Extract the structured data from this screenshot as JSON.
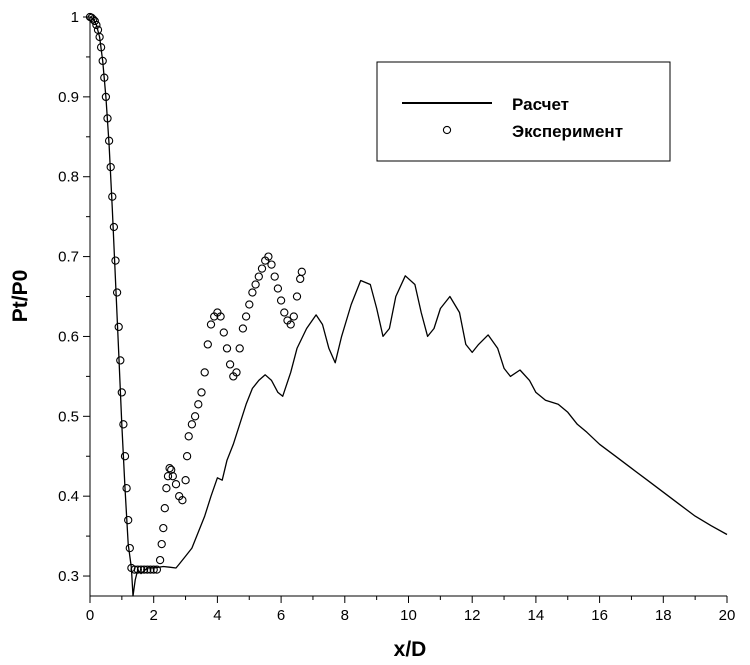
{
  "chart_data": {
    "type": "scatter",
    "title": "",
    "xlabel": "x/D",
    "ylabel": "Pt/P0",
    "xlim": [
      0,
      20
    ],
    "ylim": [
      0.275,
      1.0
    ],
    "x_ticks": [
      0,
      2,
      4,
      6,
      8,
      10,
      12,
      14,
      16,
      18,
      20
    ],
    "y_ticks": [
      0.3,
      0.4,
      0.5,
      0.6,
      0.7,
      0.8,
      0.9,
      1
    ],
    "grid": false,
    "legend": {
      "placement": "top-right",
      "entries": [
        {
          "label": "Расчет",
          "style": "line"
        },
        {
          "label": "Эксперимент",
          "style": "open-circle"
        }
      ]
    },
    "series": [
      {
        "name": "Расчет",
        "kind": "line",
        "color": "#000000",
        "points": [
          [
            0.0,
            1.0
          ],
          [
            0.1,
            0.998
          ],
          [
            0.2,
            0.99
          ],
          [
            0.3,
            0.975
          ],
          [
            0.4,
            0.945
          ],
          [
            0.5,
            0.9
          ],
          [
            0.6,
            0.84
          ],
          [
            0.7,
            0.76
          ],
          [
            0.8,
            0.67
          ],
          [
            0.9,
            0.58
          ],
          [
            1.0,
            0.49
          ],
          [
            1.1,
            0.41
          ],
          [
            1.2,
            0.34
          ],
          [
            1.3,
            0.31
          ],
          [
            1.35,
            0.275
          ],
          [
            1.42,
            0.295
          ],
          [
            1.5,
            0.308
          ],
          [
            1.6,
            0.303
          ],
          [
            1.8,
            0.31
          ],
          [
            2.0,
            0.31
          ],
          [
            2.3,
            0.312
          ],
          [
            2.5,
            0.311
          ],
          [
            2.7,
            0.31
          ],
          [
            2.8,
            0.315
          ],
          [
            3.0,
            0.325
          ],
          [
            3.2,
            0.335
          ],
          [
            3.4,
            0.355
          ],
          [
            3.6,
            0.375
          ],
          [
            3.8,
            0.4
          ],
          [
            4.0,
            0.423
          ],
          [
            4.15,
            0.42
          ],
          [
            4.3,
            0.445
          ],
          [
            4.5,
            0.465
          ],
          [
            4.7,
            0.49
          ],
          [
            4.9,
            0.515
          ],
          [
            5.1,
            0.535
          ],
          [
            5.3,
            0.545
          ],
          [
            5.5,
            0.552
          ],
          [
            5.7,
            0.545
          ],
          [
            5.9,
            0.53
          ],
          [
            6.05,
            0.525
          ],
          [
            6.3,
            0.555
          ],
          [
            6.5,
            0.585
          ],
          [
            6.8,
            0.61
          ],
          [
            7.1,
            0.627
          ],
          [
            7.3,
            0.615
          ],
          [
            7.5,
            0.585
          ],
          [
            7.7,
            0.567
          ],
          [
            7.9,
            0.6
          ],
          [
            8.2,
            0.64
          ],
          [
            8.5,
            0.67
          ],
          [
            8.8,
            0.665
          ],
          [
            9.0,
            0.635
          ],
          [
            9.2,
            0.6
          ],
          [
            9.4,
            0.61
          ],
          [
            9.6,
            0.65
          ],
          [
            9.9,
            0.676
          ],
          [
            10.2,
            0.665
          ],
          [
            10.4,
            0.63
          ],
          [
            10.6,
            0.6
          ],
          [
            10.8,
            0.61
          ],
          [
            11.0,
            0.635
          ],
          [
            11.3,
            0.65
          ],
          [
            11.6,
            0.63
          ],
          [
            11.8,
            0.59
          ],
          [
            12.0,
            0.58
          ],
          [
            12.2,
            0.59
          ],
          [
            12.5,
            0.602
          ],
          [
            12.8,
            0.585
          ],
          [
            13.0,
            0.56
          ],
          [
            13.2,
            0.55
          ],
          [
            13.5,
            0.558
          ],
          [
            13.8,
            0.545
          ],
          [
            14.0,
            0.53
          ],
          [
            14.3,
            0.52
          ],
          [
            14.7,
            0.515
          ],
          [
            15.0,
            0.505
          ],
          [
            15.3,
            0.49
          ],
          [
            15.6,
            0.48
          ],
          [
            16.0,
            0.465
          ],
          [
            16.5,
            0.45
          ],
          [
            17.0,
            0.435
          ],
          [
            17.5,
            0.42
          ],
          [
            18.0,
            0.405
          ],
          [
            18.5,
            0.39
          ],
          [
            19.0,
            0.375
          ],
          [
            19.5,
            0.363
          ],
          [
            20.0,
            0.352
          ]
        ]
      },
      {
        "name": "Эксперимент",
        "kind": "scatter",
        "marker": "open-circle",
        "color": "#000000",
        "points": [
          [
            0.0,
            1.0
          ],
          [
            0.05,
            0.999
          ],
          [
            0.1,
            0.997
          ],
          [
            0.15,
            0.995
          ],
          [
            0.2,
            0.99
          ],
          [
            0.25,
            0.984
          ],
          [
            0.3,
            0.975
          ],
          [
            0.35,
            0.962
          ],
          [
            0.4,
            0.945
          ],
          [
            0.45,
            0.924
          ],
          [
            0.5,
            0.9
          ],
          [
            0.55,
            0.873
          ],
          [
            0.6,
            0.845
          ],
          [
            0.65,
            0.812
          ],
          [
            0.7,
            0.775
          ],
          [
            0.75,
            0.737
          ],
          [
            0.8,
            0.695
          ],
          [
            0.85,
            0.655
          ],
          [
            0.9,
            0.612
          ],
          [
            0.95,
            0.57
          ],
          [
            1.0,
            0.53
          ],
          [
            1.05,
            0.49
          ],
          [
            1.1,
            0.45
          ],
          [
            1.15,
            0.41
          ],
          [
            1.2,
            0.37
          ],
          [
            1.25,
            0.335
          ],
          [
            1.3,
            0.31
          ],
          [
            1.4,
            0.308
          ],
          [
            1.5,
            0.308
          ],
          [
            1.6,
            0.308
          ],
          [
            1.7,
            0.308
          ],
          [
            1.8,
            0.308
          ],
          [
            1.9,
            0.308
          ],
          [
            2.0,
            0.308
          ],
          [
            2.1,
            0.308
          ],
          [
            2.2,
            0.32
          ],
          [
            2.25,
            0.34
          ],
          [
            2.3,
            0.36
          ],
          [
            2.35,
            0.385
          ],
          [
            2.4,
            0.41
          ],
          [
            2.45,
            0.425
          ],
          [
            2.5,
            0.435
          ],
          [
            2.55,
            0.433
          ],
          [
            2.6,
            0.425
          ],
          [
            2.7,
            0.415
          ],
          [
            2.8,
            0.4
          ],
          [
            2.9,
            0.395
          ],
          [
            3.0,
            0.42
          ],
          [
            3.05,
            0.45
          ],
          [
            3.1,
            0.475
          ],
          [
            3.2,
            0.49
          ],
          [
            3.3,
            0.5
          ],
          [
            3.4,
            0.515
          ],
          [
            3.5,
            0.53
          ],
          [
            3.6,
            0.555
          ],
          [
            3.7,
            0.59
          ],
          [
            3.8,
            0.615
          ],
          [
            3.9,
            0.625
          ],
          [
            4.0,
            0.63
          ],
          [
            4.1,
            0.625
          ],
          [
            4.2,
            0.605
          ],
          [
            4.3,
            0.585
          ],
          [
            4.4,
            0.565
          ],
          [
            4.5,
            0.55
          ],
          [
            4.6,
            0.555
          ],
          [
            4.7,
            0.585
          ],
          [
            4.8,
            0.61
          ],
          [
            4.9,
            0.625
          ],
          [
            5.0,
            0.64
          ],
          [
            5.1,
            0.655
          ],
          [
            5.2,
            0.665
          ],
          [
            5.3,
            0.675
          ],
          [
            5.4,
            0.685
          ],
          [
            5.5,
            0.695
          ],
          [
            5.6,
            0.7
          ],
          [
            5.7,
            0.69
          ],
          [
            5.8,
            0.675
          ],
          [
            5.9,
            0.66
          ],
          [
            6.0,
            0.645
          ],
          [
            6.1,
            0.63
          ],
          [
            6.2,
            0.62
          ],
          [
            6.3,
            0.615
          ],
          [
            6.4,
            0.625
          ],
          [
            6.5,
            0.65
          ],
          [
            6.6,
            0.672
          ],
          [
            6.65,
            0.681
          ]
        ]
      }
    ]
  }
}
